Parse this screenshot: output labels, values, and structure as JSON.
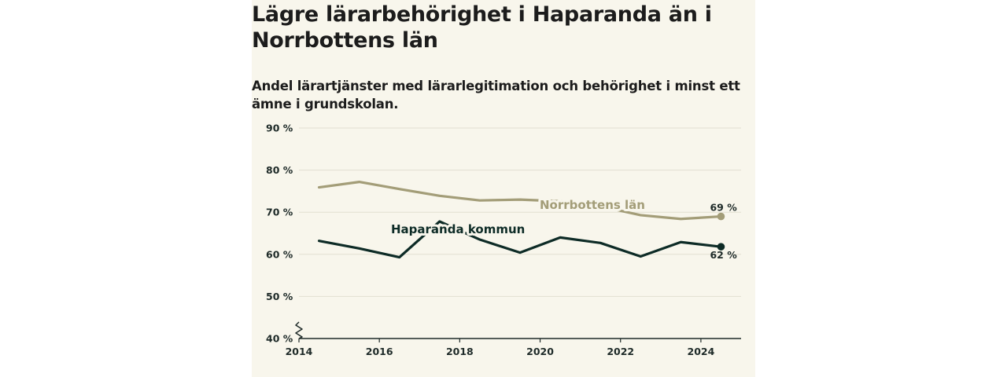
{
  "colors": {
    "background": "#f8f6ec",
    "norrbotten": "#a39d78",
    "haparanda": "#0d2b26",
    "grid": "#e2dfd2",
    "axis": "#1e2a28"
  },
  "chart_data": {
    "type": "line",
    "title": "Lägre lärarbehörighet i Haparanda än i Norrbottens län",
    "subtitle": "Andel lärartjänster med lärarlegitimation och behörighet i minst ett ämne i grundskolan.",
    "xlabel": "",
    "ylabel": "",
    "xlim": [
      2014,
      2025
    ],
    "ylim": [
      40,
      90
    ],
    "x_ticks": [
      "2014",
      "2016",
      "2018",
      "2020",
      "2022",
      "2024"
    ],
    "y_ticks": [
      "40 %",
      "50 %",
      "60 %",
      "70 %",
      "80 %",
      "90 %"
    ],
    "y_axis_break": true,
    "grid": true,
    "series": [
      {
        "name": "Norrbottens län",
        "x": [
          2014.5,
          2015.5,
          2016.5,
          2017.5,
          2018.5,
          2019.5,
          2020.5,
          2021.5,
          2022.5,
          2023.5,
          2024.5
        ],
        "values": [
          75.9,
          77.2,
          75.5,
          73.9,
          72.8,
          73.0,
          72.6,
          71.4,
          69.3,
          68.4,
          69.0
        ],
        "end_label": "69 %"
      },
      {
        "name": "Haparanda kommun",
        "x": [
          2014.5,
          2015.5,
          2016.5,
          2017.5,
          2018.5,
          2019.5,
          2020.5,
          2021.5,
          2022.5,
          2023.5,
          2024.5
        ],
        "values": [
          63.2,
          61.4,
          59.3,
          67.8,
          63.5,
          60.4,
          64.0,
          62.7,
          59.5,
          62.9,
          61.8
        ],
        "end_label": "62 %"
      }
    ]
  }
}
